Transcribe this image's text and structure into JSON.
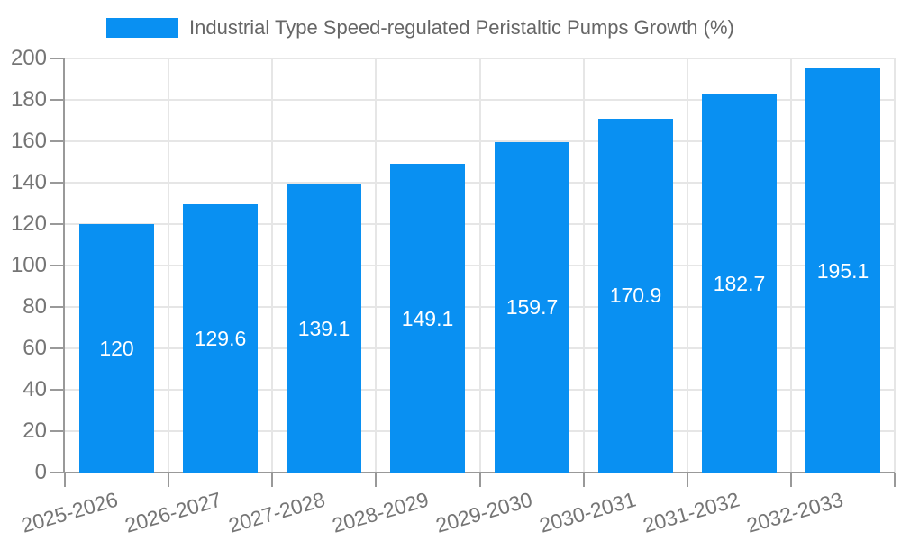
{
  "legend": {
    "label": "Industrial Type Speed-regulated Peristaltic Pumps Growth (%)"
  },
  "colors": {
    "bar": "#0990f2",
    "axis": "#999999",
    "grid": "#e6e6e6",
    "tick": "#aaaaaa",
    "tick_label": "#757575",
    "legend_text": "#666666",
    "bar_label": "#ffffff",
    "background": "#ffffff"
  },
  "chart_data": {
    "type": "bar",
    "title": "Industrial Type Speed-regulated Peristaltic Pumps Growth (%)",
    "categories": [
      "2025-2026",
      "2026-2027",
      "2027-2028",
      "2028-2029",
      "2029-2030",
      "2030-2031",
      "2031-2032",
      "2032-2033"
    ],
    "values": [
      120,
      129.6,
      139.1,
      149.1,
      159.7,
      170.9,
      182.7,
      195.1
    ],
    "xlabel": "",
    "ylabel": "",
    "ylim": [
      0,
      200
    ],
    "ytick_step": 20,
    "yticks": [
      0,
      20,
      40,
      60,
      80,
      100,
      120,
      140,
      160,
      180,
      200
    ],
    "grid": true,
    "legend_position": "top-left",
    "bar_label_position": "inside-center",
    "x_label_rotation_deg": -16
  }
}
